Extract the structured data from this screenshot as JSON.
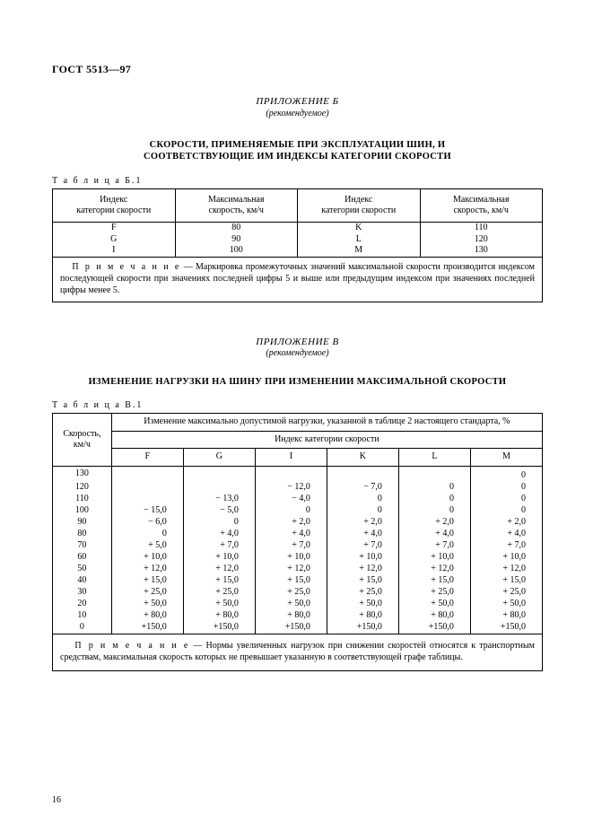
{
  "header": {
    "gost": "ГОСТ 5513—97"
  },
  "appendixB": {
    "title": "ПРИЛОЖЕНИЕ Б",
    "subtitle": "(рекомендуемое)",
    "heading1": "СКОРОСТИ, ПРИМЕНЯЕМЫЕ ПРИ ЭКСПЛУАТАЦИИ ШИН, И",
    "heading2": "СООТВЕТСТВУЮЩИЕ ИМ ИНДЕКСЫ КАТЕГОРИИ СКОРОСТИ",
    "tableLabel": "Т а б л и ц а  Б.1",
    "headers": {
      "h1": "Индекс\nкатегории скорости",
      "h2": "Максимальная\nскорость, км/ч",
      "h3": "Индекс\nкатегории скорости",
      "h4": "Максимальная\nскорость, км/ч"
    },
    "rows": [
      {
        "c1": "F",
        "c2": "80",
        "c3": "K",
        "c4": "110"
      },
      {
        "c1": "G",
        "c2": "90",
        "c3": "L",
        "c4": "120"
      },
      {
        "c1": "I",
        "c2": "100",
        "c3": "M",
        "c4": "130"
      }
    ],
    "noteLabel": "П р и м е ч а н и е",
    "noteText": " — Маркировка промежуточных значений максимальной скорости производится индексом последующей скорости при значениях последней цифры 5 и выше или предыдущим индексом при значениях последней цифры менее 5."
  },
  "appendixV": {
    "title": "ПРИЛОЖЕНИЕ В",
    "subtitle": "(рекомендуемое)",
    "heading": "ИЗМЕНЕНИЕ НАГРУЗКИ НА ШИНУ ПРИ ИЗМЕНЕНИИ МАКСИМАЛЬНОЙ СКОРОСТИ",
    "tableLabel": "Т а б л и ц а В.1",
    "headers": {
      "speed": "Скорость,\nкм/ч",
      "top": "Изменение максимально допустимой нагрузки, указанной в таблице 2 настоящего стандарта, %",
      "sub": "Индекс категории скорости",
      "cols": [
        "F",
        "G",
        "I",
        "K",
        "L",
        "M"
      ]
    },
    "rows": [
      {
        "s": "130",
        "v": [
          "",
          "",
          "",
          "",
          "",
          "0"
        ]
      },
      {
        "s": "120",
        "v": [
          "",
          "",
          "− 12,0",
          "− 7,0",
          "0",
          "0"
        ]
      },
      {
        "s": "110",
        "v": [
          "",
          "− 13,0",
          "− 4,0",
          "0",
          "0",
          "0"
        ]
      },
      {
        "s": "100",
        "v": [
          "− 15,0",
          "− 5,0",
          "0",
          "0",
          "0",
          "0"
        ]
      },
      {
        "s": "90",
        "v": [
          "− 6,0",
          "0",
          "+ 2,0",
          "+ 2,0",
          "+ 2,0",
          "+ 2,0"
        ]
      },
      {
        "s": "80",
        "v": [
          "0",
          "+ 4,0",
          "+ 4,0",
          "+ 4,0",
          "+ 4,0",
          "+ 4,0"
        ]
      },
      {
        "s": "70",
        "v": [
          "+ 5,0",
          "+ 7,0",
          "+ 7,0",
          "+ 7,0",
          "+ 7,0",
          "+ 7,0"
        ]
      },
      {
        "s": "60",
        "v": [
          "+ 10,0",
          "+ 10,0",
          "+ 10,0",
          "+ 10,0",
          "+ 10,0",
          "+ 10,0"
        ]
      },
      {
        "s": "50",
        "v": [
          "+ 12,0",
          "+ 12,0",
          "+ 12,0",
          "+ 12,0",
          "+ 12,0",
          "+ 12,0"
        ]
      },
      {
        "s": "40",
        "v": [
          "+ 15,0",
          "+ 15,0",
          "+ 15,0",
          "+ 15,0",
          "+ 15,0",
          "+ 15,0"
        ]
      },
      {
        "s": "30",
        "v": [
          "+ 25,0",
          "+ 25,0",
          "+ 25,0",
          "+ 25,0",
          "+ 25,0",
          "+ 25,0"
        ]
      },
      {
        "s": "20",
        "v": [
          "+ 50,0",
          "+ 50,0",
          "+ 50,0",
          "+ 50,0",
          "+ 50,0",
          "+ 50,0"
        ]
      },
      {
        "s": "10",
        "v": [
          "+ 80,0",
          "+ 80,0",
          "+ 80,0",
          "+ 80,0",
          "+ 80,0",
          "+ 80,0"
        ]
      },
      {
        "s": "0",
        "v": [
          "+150,0",
          "+150,0",
          "+150,0",
          "+150,0",
          "+150,0",
          "+150,0"
        ]
      }
    ],
    "noteLabel": "П р и м е ч а н и е",
    "noteText": " — Нормы увеличенных нагрузок при снижении скоростей относятся к транспортным средствам, максимальная скорость которых не превышает указанную в соответствующей графе таблицы."
  },
  "pageNumber": "16"
}
